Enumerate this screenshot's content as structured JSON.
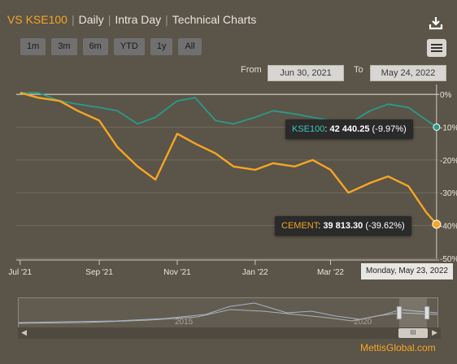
{
  "tabs": [
    {
      "label": "VS KSE100",
      "active": true
    },
    {
      "label": "Daily",
      "active": false
    },
    {
      "label": "Intra Day",
      "active": false
    },
    {
      "label": "Technical Charts",
      "active": false
    }
  ],
  "range_buttons": [
    "1m",
    "3m",
    "6m",
    "YTD",
    "1y",
    "All"
  ],
  "date_range": {
    "from_label": "From",
    "from": "Jun 30, 2021",
    "to_label": "To",
    "to": "May 24, 2022"
  },
  "icons": {
    "download": "download-icon",
    "menu": "hamburger-menu-icon"
  },
  "colors": {
    "cement": "#f5a623",
    "kse100": "#2a9a8c",
    "background": "#5b5448"
  },
  "chart_data": {
    "type": "line",
    "x_ticks": [
      "Jul '21",
      "Sep '21",
      "Nov '21",
      "Jan '22",
      "Mar '22"
    ],
    "y_ticks": [
      "0%",
      "-10%",
      "-20%",
      "-30%",
      "-40%",
      "-50%"
    ],
    "ylim": [
      -50,
      3
    ],
    "series": [
      {
        "name": "KSE100",
        "color": "#2a9a8c",
        "x": [
          "2021-07-01",
          "2021-07-15",
          "2021-08-01",
          "2021-08-15",
          "2021-09-01",
          "2021-09-15",
          "2021-10-01",
          "2021-10-15",
          "2021-11-01",
          "2021-11-15",
          "2021-12-01",
          "2021-12-15",
          "2022-01-01",
          "2022-01-15",
          "2022-02-01",
          "2022-02-15",
          "2022-03-01",
          "2022-03-15",
          "2022-04-01",
          "2022-04-15",
          "2022-05-01",
          "2022-05-23"
        ],
        "values": [
          0.5,
          0.5,
          -2,
          -3,
          -4,
          -5,
          -9,
          -7,
          -2,
          -1,
          -8,
          -9,
          -7,
          -5,
          -6,
          -7,
          -8,
          -9,
          -5,
          -3,
          -4,
          -10
        ]
      },
      {
        "name": "CEMENT",
        "color": "#f5a623",
        "x": [
          "2021-07-01",
          "2021-07-15",
          "2021-08-01",
          "2021-08-15",
          "2021-09-01",
          "2021-09-15",
          "2021-10-01",
          "2021-10-15",
          "2021-11-01",
          "2021-11-15",
          "2021-12-01",
          "2021-12-15",
          "2022-01-01",
          "2022-01-15",
          "2022-02-01",
          "2022-02-15",
          "2022-03-01",
          "2022-03-15",
          "2022-04-01",
          "2022-04-15",
          "2022-05-01",
          "2022-05-15",
          "2022-05-23"
        ],
        "values": [
          0.5,
          -1,
          -2,
          -5,
          -8,
          -16,
          -22,
          -26,
          -12,
          -15,
          -18,
          -22,
          -23,
          -21,
          -22,
          -20,
          -23,
          -30,
          -27,
          -25,
          -28,
          -36,
          -39.6
        ]
      }
    ],
    "tooltips": [
      {
        "series": "KSE100",
        "value": "42 440.25",
        "change": "(-9.97%)"
      },
      {
        "series": "CEMENT",
        "value": "39 813.30",
        "change": "(-39.62%)"
      }
    ],
    "crosshair_date": "Monday, May 23, 2022",
    "navigator": {
      "x_ticks": [
        "2015",
        "2020"
      ]
    }
  },
  "brand": "MettisGlobal.com"
}
